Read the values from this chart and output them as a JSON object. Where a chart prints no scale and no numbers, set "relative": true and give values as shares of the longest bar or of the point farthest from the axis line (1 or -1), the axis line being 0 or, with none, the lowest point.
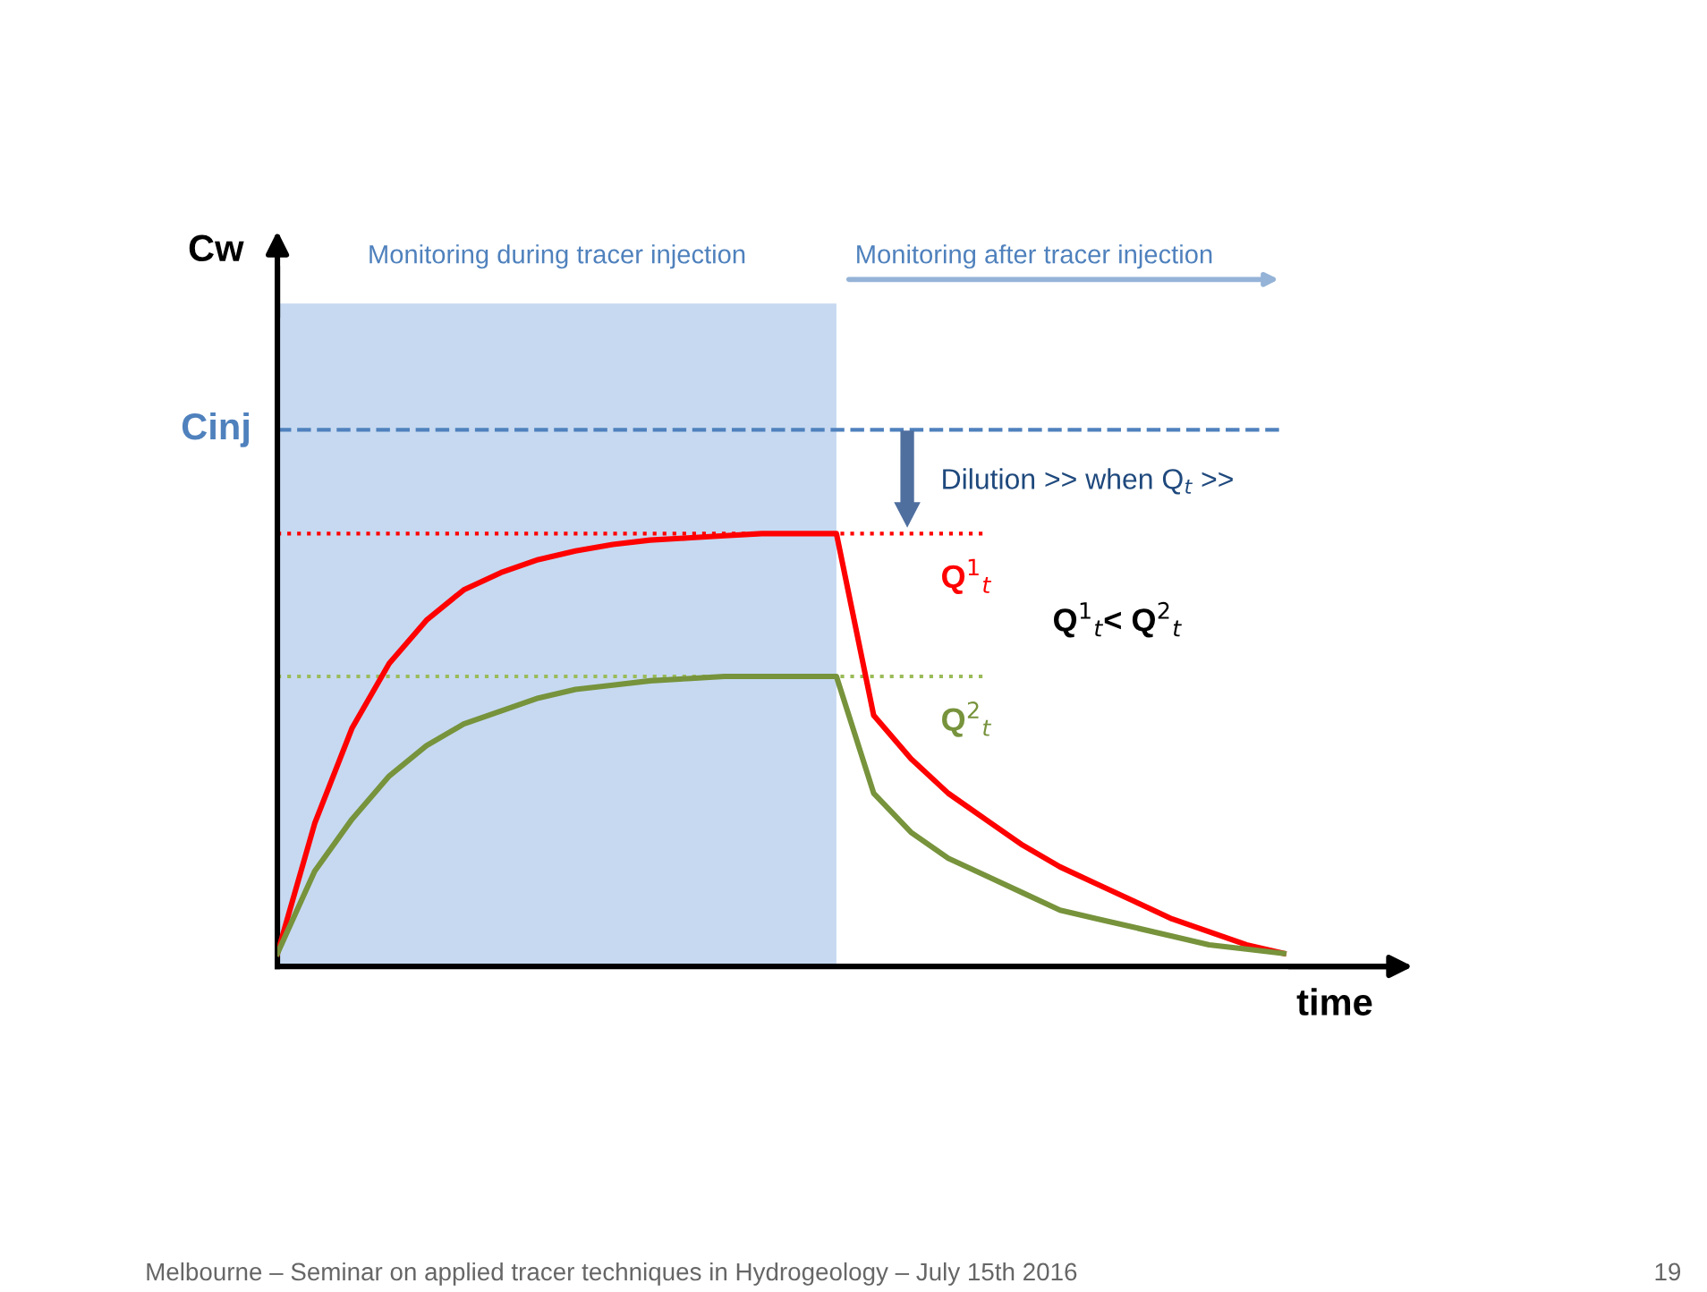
{
  "chart_data": {
    "type": "line",
    "relative": true,
    "xlabel": "time",
    "categories": [
      null,
      null,
      null,
      null,
      null,
      null,
      null,
      null,
      null,
      null,
      null,
      null,
      null,
      null,
      null,
      null,
      null,
      null,
      null,
      null,
      null,
      null,
      null,
      null,
      null,
      null,
      null,
      null
    ],
    "series": [
      {
        "name": "Q$^{1}$$_{t}$",
        "color": "#ff0000",
        "values": [
          0.03,
          0.33,
          0.55,
          0.7,
          0.8,
          0.87,
          0.91,
          0.94,
          0.96,
          0.975,
          0.985,
          0.99,
          0.995,
          1,
          1,
          1,
          0.58,
          0.48,
          0.4,
          0.34,
          0.28,
          0.23,
          0.19,
          0.15,
          0.11,
          0.08,
          0.05,
          0.03
        ]
      },
      {
        "name": "Q$^{2}$$_{t}$",
        "color": "#77933c",
        "values": [
          0.03,
          0.22,
          0.34,
          0.44,
          0.51,
          0.56,
          0.59,
          0.62,
          0.64,
          0.65,
          0.66,
          0.665,
          0.67,
          0.67,
          0.67,
          0.67,
          0.4,
          0.31,
          0.25,
          0.21,
          0.17,
          0.13,
          0.11,
          0.09,
          0.07,
          0.05,
          0.04,
          0.03
        ]
      }
    ],
    "ref_lines": [
      {
        "axis": "y",
        "value": 1.24,
        "label": "Cinj",
        "color": "#4f81bd",
        "line_style": "dashed"
      },
      {
        "axis": "y",
        "value": 1,
        "label": null,
        "color": "#ff0000",
        "line_style": "dotted"
      },
      {
        "axis": "y",
        "value": 0.67,
        "label": null,
        "color": "#9bbb59",
        "line_style": "dotted"
      }
    ],
    "annotations": [
      "Monitoring after tracer injection",
      "Dilution >> when Q$_{t}$ >>",
      "Q$^{1}$$_{t}$< Q$^{2}$$_{t}$",
      "Melbourne – Seminar on applied tracer techniques in Hydrogeology – July 15th 2016",
      "19",
      "Monitoring during tracer injection",
      "Cw"
    ],
    "legend": false,
    "marker": "none",
    "line_style": "solid"
  }
}
